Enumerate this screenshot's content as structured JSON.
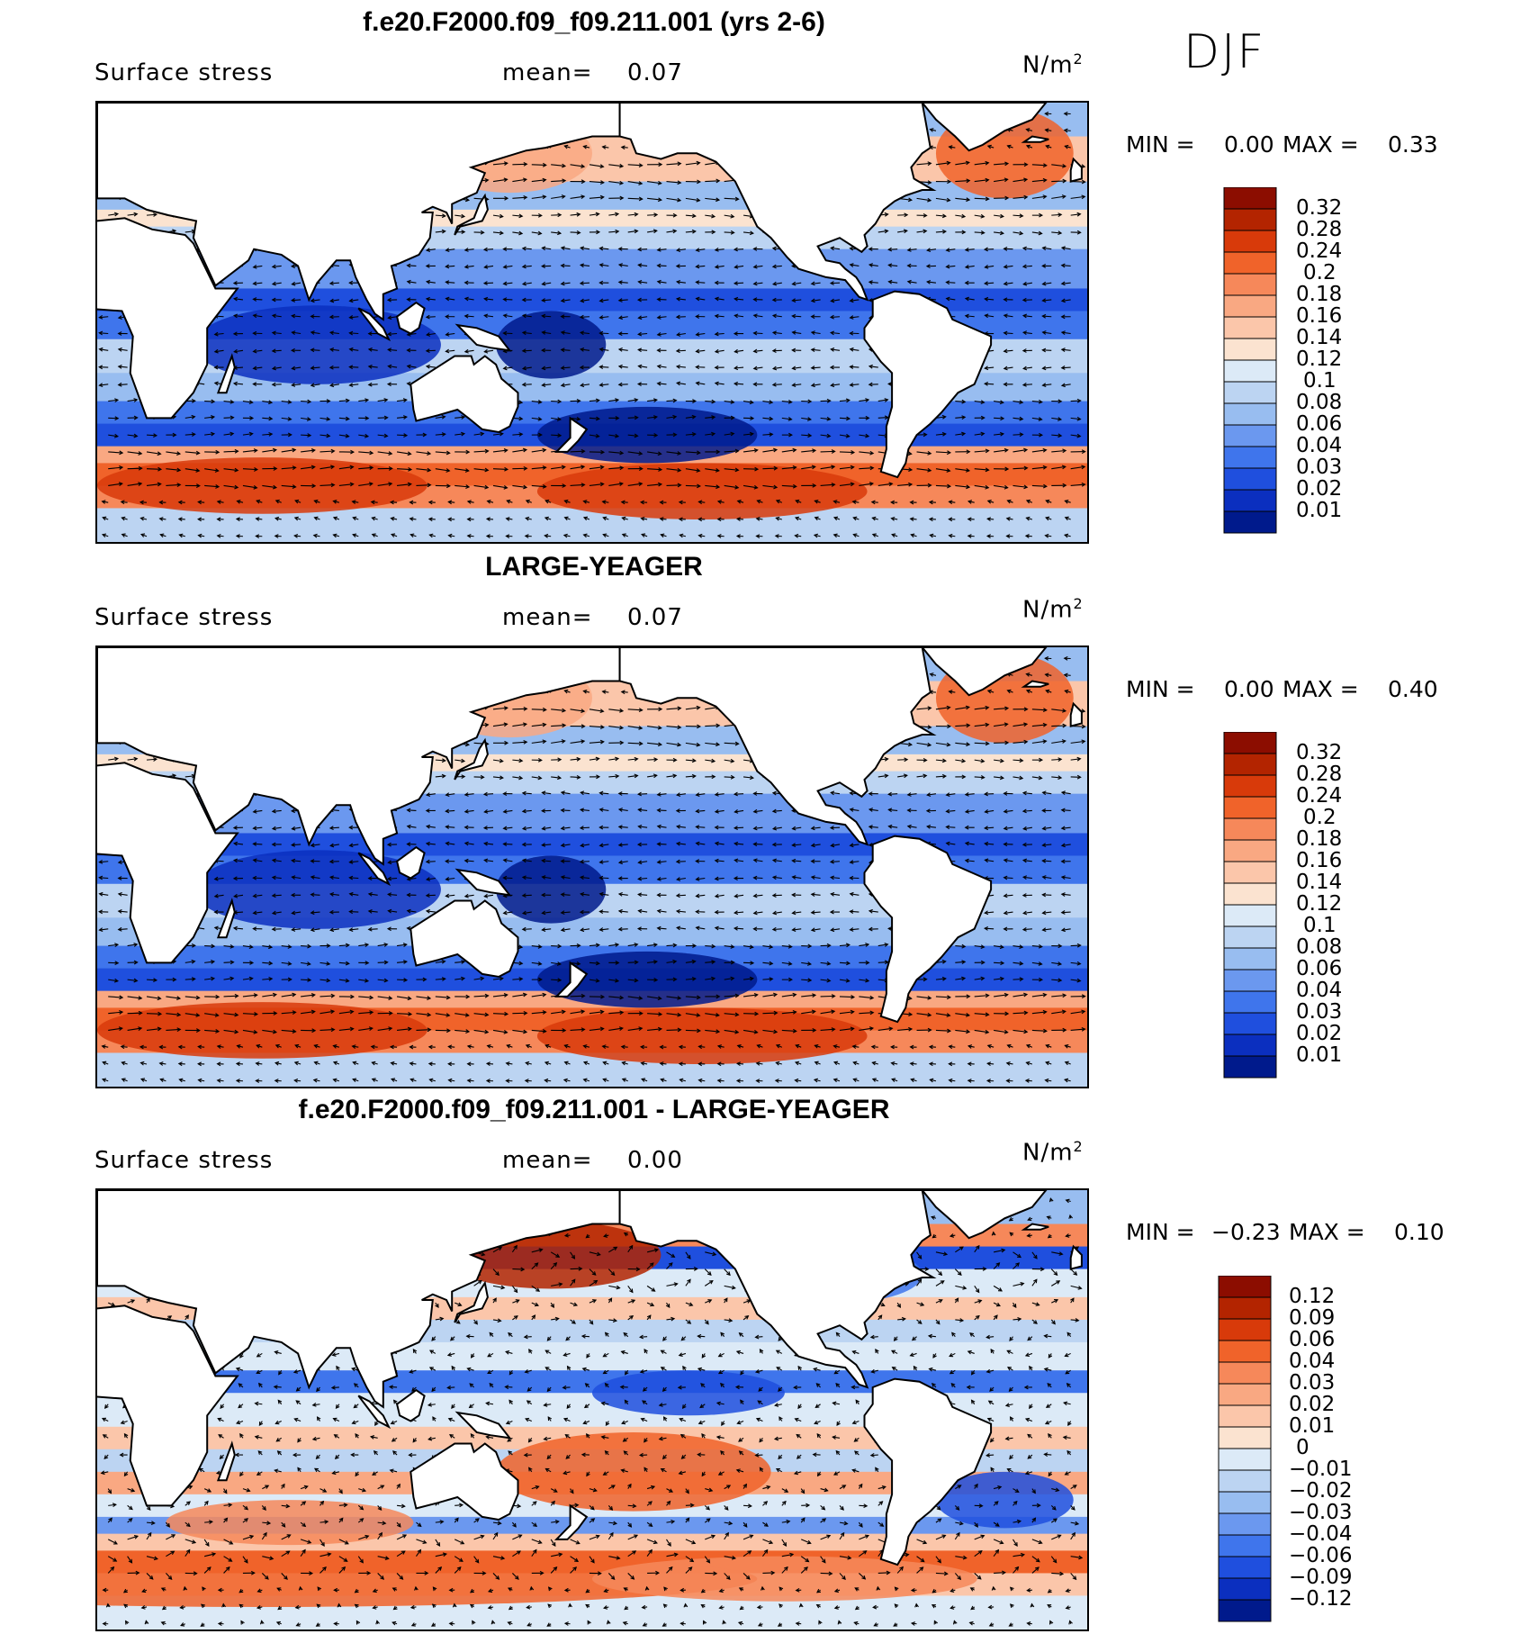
{
  "season": "DJF",
  "chart_data": [
    {
      "type": "heatmap",
      "title": "f.e20.F2000.f09_f09.211.001 (yrs 2-6)",
      "variable": "Surface stress",
      "mean_label": "mean=",
      "mean": "0.07",
      "units_base": "N/m",
      "units_exp": "2",
      "min_label": "MIN =",
      "min": "0.00",
      "max_label": "MAX =",
      "max": "0.33",
      "overlay": "vectors",
      "colorbar": {
        "ticks": [
          "0.32",
          "0.28",
          "0.24",
          "0.2",
          "0.18",
          "0.16",
          "0.14",
          "0.12",
          "0.1",
          "0.08",
          "0.06",
          "0.04",
          "0.03",
          "0.02",
          "0.01"
        ],
        "colors": [
          "#8c0d00",
          "#b32400",
          "#d83a0a",
          "#f0632a",
          "#f6885a",
          "#f9a882",
          "#fbc6aa",
          "#fbe3d0",
          "#dceaf7",
          "#bcd4f2",
          "#98bdf0",
          "#6b98ef",
          "#3f75ec",
          "#1f4fde",
          "#0b2fbf",
          "#001a8c"
        ]
      },
      "field": {
        "blue_zones": "0.01-0.06 (tropics, mid-latitude subtropics)",
        "red_zones": "0.18-0.32 (Southern Ocean westerlies, North Atlantic)"
      }
    },
    {
      "type": "heatmap",
      "title": "LARGE-YEAGER",
      "variable": "Surface stress",
      "mean_label": "mean=",
      "mean": "0.07",
      "units_base": "N/m",
      "units_exp": "2",
      "min_label": "MIN =",
      "min": "0.00",
      "max_label": "MAX =",
      "max": "0.40",
      "overlay": "vectors",
      "colorbar": {
        "ticks": [
          "0.32",
          "0.28",
          "0.24",
          "0.2",
          "0.18",
          "0.16",
          "0.14",
          "0.12",
          "0.1",
          "0.08",
          "0.06",
          "0.04",
          "0.03",
          "0.02",
          "0.01"
        ],
        "colors": [
          "#8c0d00",
          "#b32400",
          "#d83a0a",
          "#f0632a",
          "#f6885a",
          "#f9a882",
          "#fbc6aa",
          "#fbe3d0",
          "#dceaf7",
          "#bcd4f2",
          "#98bdf0",
          "#6b98ef",
          "#3f75ec",
          "#1f4fde",
          "#0b2fbf",
          "#001a8c"
        ]
      }
    },
    {
      "type": "heatmap",
      "title": "f.e20.F2000.f09_f09.211.001 - LARGE-YEAGER",
      "variable": "Surface stress",
      "mean_label": "mean=",
      "mean": "0.00",
      "units_base": "N/m",
      "units_exp": "2",
      "min_label": "MIN =",
      "min": "−0.23",
      "max_label": "MAX =",
      "max": "0.10",
      "overlay": "vectors",
      "colorbar": {
        "ticks": [
          "0.12",
          "0.09",
          "0.06",
          "0.04",
          "0.03",
          "0.02",
          "0.01",
          "0",
          "−0.01",
          "−0.02",
          "−0.03",
          "−0.04",
          "−0.06",
          "−0.09",
          "−0.12"
        ],
        "colors": [
          "#8c0d00",
          "#b32400",
          "#d83a0a",
          "#f0632a",
          "#f6885a",
          "#f9a882",
          "#fbc6aa",
          "#fbe3d0",
          "#dceaf7",
          "#bcd4f2",
          "#98bdf0",
          "#6b98ef",
          "#3f75ec",
          "#1f4fde",
          "#0b2fbf",
          "#001a8c"
        ]
      }
    }
  ]
}
